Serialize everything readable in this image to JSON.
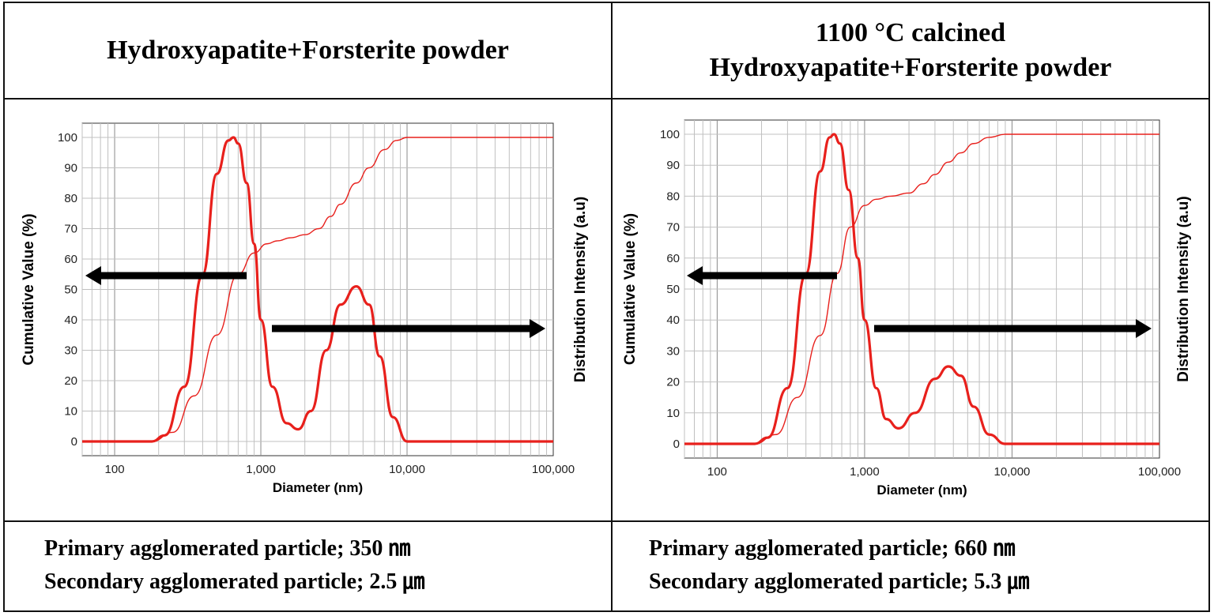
{
  "columns": [
    {
      "header": "Hydroxyapatite+Forsterite powder",
      "footer": {
        "primary": "Primary agglomerated particle; 350 ㎚",
        "secondary": "Secondary agglomerated particle; 2.5 ㎛"
      }
    },
    {
      "header_line1": "1100 °C calcined",
      "header_line2": "Hydroxyapatite+Forsterite powder",
      "footer": {
        "primary": "Primary agglomerated particle; 660 ㎚",
        "secondary": "Secondary agglomerated particle; 5.3 ㎛"
      }
    }
  ],
  "colors": {
    "curve": "#e8201c",
    "arrow": "#000000",
    "grid": "#c0c0c0"
  },
  "chart_data": [
    {
      "type": "line",
      "xlabel": "Diameter (nm)",
      "ylabel": "Cumulative Value (%)",
      "y2label": "Distribution Intensity (a.u)",
      "xscale": "log",
      "xlim": [
        60,
        100000
      ],
      "ylim": [
        0,
        100
      ],
      "xticks": [
        100,
        1000,
        10000,
        100000
      ],
      "xticklabels": [
        "100",
        "1,000",
        "10,000",
        "100,000"
      ],
      "yticks": [
        0,
        10,
        20,
        30,
        40,
        50,
        60,
        70,
        80,
        90,
        100
      ],
      "grid": true,
      "series": [
        {
          "x": [
            60,
            180,
            220,
            300,
            400,
            500,
            600,
            650,
            700,
            800,
            900,
            1000,
            1200,
            1500,
            1800,
            2200,
            2800,
            3500,
            4500,
            5500,
            6500,
            8000,
            10000,
            100000
          ],
          "y": [
            0,
            0,
            2,
            18,
            55,
            88,
            99,
            100,
            98,
            85,
            65,
            40,
            18,
            6,
            4,
            10,
            30,
            45,
            51,
            45,
            28,
            8,
            0,
            0
          ]
        },
        {
          "x": [
            60,
            180,
            250,
            350,
            500,
            700,
            900,
            1100,
            1300,
            1600,
            2000,
            2500,
            3000,
            3500,
            4500,
            5500,
            7000,
            8500,
            10000,
            100000
          ],
          "y": [
            0,
            0,
            3,
            15,
            35,
            55,
            62,
            65,
            66,
            67,
            68,
            70,
            74,
            78,
            85,
            90,
            96,
            99,
            100,
            100
          ]
        }
      ],
      "arrows": [
        "left",
        "right"
      ]
    },
    {
      "type": "line",
      "xlabel": "Diameter (nm)",
      "ylabel": "Cumulative Value (%)",
      "y2label": "Distribution Intensity (a.u)",
      "xscale": "log",
      "xlim": [
        60,
        100000
      ],
      "ylim": [
        0,
        100
      ],
      "xticks": [
        100,
        1000,
        10000,
        100000
      ],
      "xticklabels": [
        "100",
        "1,000",
        "10,000",
        "100,000"
      ],
      "yticks": [
        0,
        10,
        20,
        30,
        40,
        50,
        60,
        70,
        80,
        90,
        100
      ],
      "grid": true,
      "series": [
        {
          "x": [
            60,
            180,
            220,
            300,
            400,
            500,
            580,
            620,
            680,
            780,
            900,
            1000,
            1200,
            1400,
            1700,
            2200,
            3000,
            3700,
            4500,
            5500,
            7000,
            9000,
            100000
          ],
          "y": [
            0,
            0,
            2,
            18,
            55,
            88,
            99,
            100,
            97,
            82,
            60,
            40,
            18,
            8,
            5,
            10,
            21,
            25,
            22,
            12,
            3,
            0,
            0
          ]
        },
        {
          "x": [
            60,
            180,
            250,
            350,
            500,
            650,
            800,
            1000,
            1200,
            1500,
            2000,
            2500,
            3000,
            3700,
            4500,
            5500,
            7000,
            9000,
            10000,
            100000
          ],
          "y": [
            0,
            0,
            3,
            15,
            35,
            55,
            70,
            77,
            79,
            80,
            81,
            84,
            87,
            91,
            94,
            97,
            99,
            100,
            100,
            100
          ]
        }
      ],
      "arrows": [
        "left",
        "right"
      ]
    }
  ]
}
